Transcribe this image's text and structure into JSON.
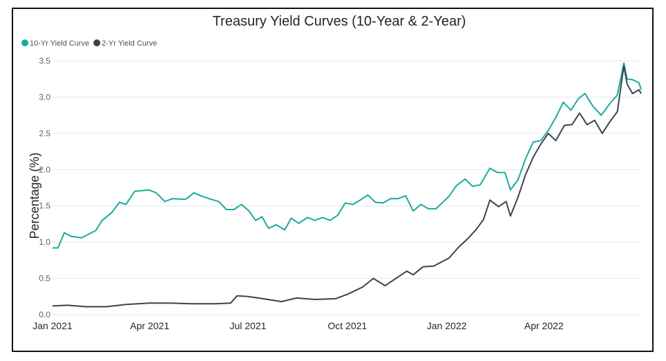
{
  "chart_data": {
    "type": "line",
    "title": "Treasury Yield Curves (10-Year & 2-Year)",
    "xlabel": "",
    "ylabel": "Percentage (%)",
    "ylim": [
      0,
      3.5
    ],
    "yticks": [
      "0.0",
      "0.5",
      "1.0",
      "1.5",
      "2.0",
      "2.5",
      "3.0",
      "3.5"
    ],
    "x_range": [
      "2021-01-01",
      "2022-06-30"
    ],
    "xticks": [
      {
        "date": "2021-01-01",
        "label": "Jan 2021"
      },
      {
        "date": "2021-04-01",
        "label": "Apr 2021"
      },
      {
        "date": "2021-07-01",
        "label": "Jul 2021"
      },
      {
        "date": "2021-10-01",
        "label": "Oct 2021"
      },
      {
        "date": "2022-01-01",
        "label": "Jan 2022"
      },
      {
        "date": "2022-04-01",
        "label": "Apr 2022"
      }
    ],
    "grid": true,
    "legend": "top-left",
    "series": [
      {
        "name": "10-Yr Yield Curve",
        "color": "#1AAB9B",
        "points": [
          [
            "2021-01-01",
            0.92
          ],
          [
            "2021-01-06",
            0.92
          ],
          [
            "2021-01-12",
            1.13
          ],
          [
            "2021-01-18",
            1.08
          ],
          [
            "2021-01-28",
            1.06
          ],
          [
            "2021-02-02",
            1.1
          ],
          [
            "2021-02-10",
            1.16
          ],
          [
            "2021-02-16",
            1.3
          ],
          [
            "2021-02-25",
            1.41
          ],
          [
            "2021-03-04",
            1.55
          ],
          [
            "2021-03-10",
            1.52
          ],
          [
            "2021-03-18",
            1.7
          ],
          [
            "2021-03-31",
            1.72
          ],
          [
            "2021-04-07",
            1.68
          ],
          [
            "2021-04-15",
            1.56
          ],
          [
            "2021-04-22",
            1.6
          ],
          [
            "2021-05-04",
            1.59
          ],
          [
            "2021-05-12",
            1.68
          ],
          [
            "2021-05-20",
            1.63
          ],
          [
            "2021-05-28",
            1.59
          ],
          [
            "2021-06-04",
            1.56
          ],
          [
            "2021-06-11",
            1.45
          ],
          [
            "2021-06-18",
            1.45
          ],
          [
            "2021-06-25",
            1.52
          ],
          [
            "2021-07-02",
            1.43
          ],
          [
            "2021-07-08",
            1.3
          ],
          [
            "2021-07-14",
            1.35
          ],
          [
            "2021-07-20",
            1.19
          ],
          [
            "2021-07-27",
            1.24
          ],
          [
            "2021-08-04",
            1.17
          ],
          [
            "2021-08-10",
            1.33
          ],
          [
            "2021-08-17",
            1.26
          ],
          [
            "2021-08-25",
            1.34
          ],
          [
            "2021-09-01",
            1.3
          ],
          [
            "2021-09-08",
            1.34
          ],
          [
            "2021-09-15",
            1.3
          ],
          [
            "2021-09-22",
            1.37
          ],
          [
            "2021-09-29",
            1.54
          ],
          [
            "2021-10-06",
            1.52
          ],
          [
            "2021-10-13",
            1.58
          ],
          [
            "2021-10-20",
            1.65
          ],
          [
            "2021-10-27",
            1.55
          ],
          [
            "2021-11-03",
            1.54
          ],
          [
            "2021-11-10",
            1.6
          ],
          [
            "2021-11-17",
            1.6
          ],
          [
            "2021-11-24",
            1.64
          ],
          [
            "2021-12-01",
            1.43
          ],
          [
            "2021-12-08",
            1.52
          ],
          [
            "2021-12-15",
            1.46
          ],
          [
            "2021-12-22",
            1.46
          ],
          [
            "2022-01-03",
            1.63
          ],
          [
            "2022-01-10",
            1.78
          ],
          [
            "2022-01-18",
            1.87
          ],
          [
            "2022-01-25",
            1.77
          ],
          [
            "2022-02-01",
            1.79
          ],
          [
            "2022-02-10",
            2.02
          ],
          [
            "2022-02-17",
            1.96
          ],
          [
            "2022-02-24",
            1.96
          ],
          [
            "2022-03-01",
            1.72
          ],
          [
            "2022-03-08",
            1.86
          ],
          [
            "2022-03-15",
            2.15
          ],
          [
            "2022-03-22",
            2.38
          ],
          [
            "2022-03-29",
            2.4
          ],
          [
            "2022-04-05",
            2.54
          ],
          [
            "2022-04-12",
            2.72
          ],
          [
            "2022-04-19",
            2.93
          ],
          [
            "2022-04-26",
            2.82
          ],
          [
            "2022-05-03",
            2.98
          ],
          [
            "2022-05-09",
            3.05
          ],
          [
            "2022-05-16",
            2.88
          ],
          [
            "2022-05-24",
            2.75
          ],
          [
            "2022-06-01",
            2.91
          ],
          [
            "2022-06-08",
            3.03
          ],
          [
            "2022-06-14",
            3.47
          ],
          [
            "2022-06-17",
            3.25
          ],
          [
            "2022-06-22",
            3.24
          ],
          [
            "2022-06-28",
            3.2
          ],
          [
            "2022-06-30",
            3.1
          ]
        ]
      },
      {
        "name": "2-Yr Yield Curve",
        "color": "#374649",
        "points": [
          [
            "2021-01-01",
            0.12
          ],
          [
            "2021-01-15",
            0.13
          ],
          [
            "2021-02-01",
            0.11
          ],
          [
            "2021-02-20",
            0.11
          ],
          [
            "2021-03-10",
            0.14
          ],
          [
            "2021-04-01",
            0.16
          ],
          [
            "2021-04-20",
            0.16
          ],
          [
            "2021-05-10",
            0.15
          ],
          [
            "2021-06-01",
            0.15
          ],
          [
            "2021-06-15",
            0.16
          ],
          [
            "2021-06-21",
            0.26
          ],
          [
            "2021-07-01",
            0.25
          ],
          [
            "2021-07-15",
            0.22
          ],
          [
            "2021-08-01",
            0.18
          ],
          [
            "2021-08-15",
            0.23
          ],
          [
            "2021-09-01",
            0.21
          ],
          [
            "2021-09-20",
            0.22
          ],
          [
            "2021-10-01",
            0.28
          ],
          [
            "2021-10-15",
            0.38
          ],
          [
            "2021-10-25",
            0.5
          ],
          [
            "2021-11-05",
            0.4
          ],
          [
            "2021-11-15",
            0.5
          ],
          [
            "2021-11-25",
            0.6
          ],
          [
            "2021-12-01",
            0.55
          ],
          [
            "2021-12-10",
            0.66
          ],
          [
            "2021-12-20",
            0.67
          ],
          [
            "2022-01-03",
            0.78
          ],
          [
            "2022-01-12",
            0.93
          ],
          [
            "2022-01-20",
            1.04
          ],
          [
            "2022-01-28",
            1.17
          ],
          [
            "2022-02-04",
            1.31
          ],
          [
            "2022-02-10",
            1.58
          ],
          [
            "2022-02-18",
            1.49
          ],
          [
            "2022-02-25",
            1.56
          ],
          [
            "2022-03-01",
            1.36
          ],
          [
            "2022-03-08",
            1.62
          ],
          [
            "2022-03-15",
            1.93
          ],
          [
            "2022-03-22",
            2.17
          ],
          [
            "2022-03-29",
            2.35
          ],
          [
            "2022-04-05",
            2.5
          ],
          [
            "2022-04-12",
            2.4
          ],
          [
            "2022-04-20",
            2.61
          ],
          [
            "2022-04-27",
            2.62
          ],
          [
            "2022-05-04",
            2.78
          ],
          [
            "2022-05-11",
            2.62
          ],
          [
            "2022-05-18",
            2.68
          ],
          [
            "2022-05-25",
            2.5
          ],
          [
            "2022-06-01",
            2.66
          ],
          [
            "2022-06-08",
            2.8
          ],
          [
            "2022-06-14",
            3.43
          ],
          [
            "2022-06-17",
            3.18
          ],
          [
            "2022-06-22",
            3.05
          ],
          [
            "2022-06-28",
            3.1
          ],
          [
            "2022-06-30",
            3.05
          ]
        ]
      }
    ]
  }
}
